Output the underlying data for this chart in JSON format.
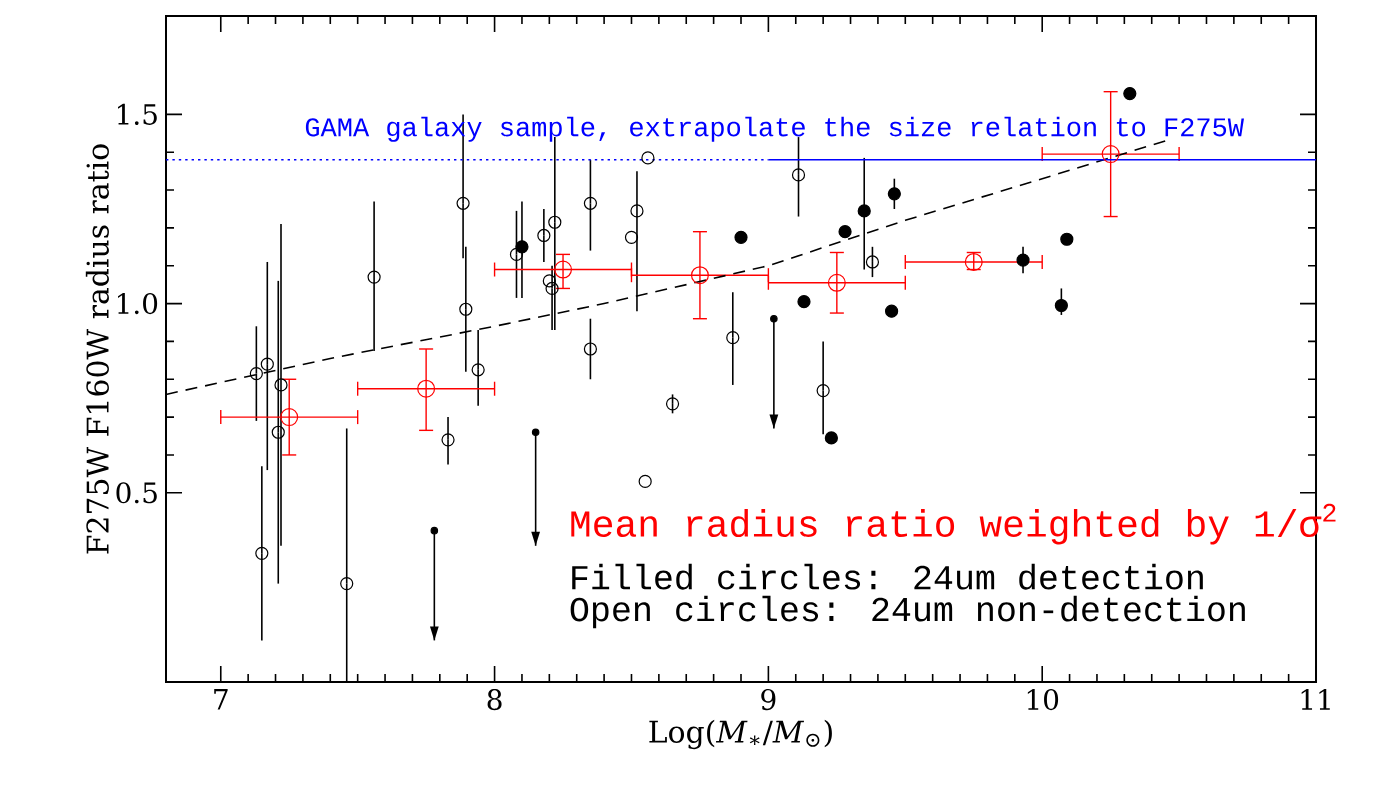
{
  "chart_data": {
    "type": "scatter",
    "xlabel": "Log(*M*$_{∗}$/*M*$_{⊙}$)",
    "ylabel": "F275W F160W radius ratio",
    "xlim": [
      6.8,
      11
    ],
    "ylim": [
      0,
      1.76
    ],
    "xticks": [
      7,
      8,
      9,
      10,
      11
    ],
    "yticks": [
      0.5,
      {
        "value": 1.0,
        "label": "1.0"
      },
      1.5
    ],
    "annotations": [
      "GAMA galaxy sample, extrapolate the size relation to F275W",
      "Mean radius ratio weighted by 1/σ$^{2}$",
      "Filled circles: 24um detection",
      "Open circles: 24um non-detection"
    ],
    "series": [
      {
        "color": "#000000",
        "marker": "circle-open",
        "x": [
          7.13,
          7.17,
          7.22,
          7.21,
          7.15,
          7.46,
          7.56,
          7.885,
          7.895,
          7.94,
          7.83,
          8.08,
          8.18,
          8.22,
          8.2,
          8.21,
          8.35,
          8.35,
          8.56,
          8.52,
          8.5,
          8.65,
          8.55,
          8.87,
          9.11,
          9.2,
          9.38
        ],
        "values": [
          0.815,
          0.84,
          0.785,
          0.66,
          0.34,
          0.26,
          1.07,
          1.265,
          0.985,
          0.825,
          0.64,
          1.13,
          1.18,
          1.215,
          1.06,
          1.04,
          1.265,
          0.88,
          1.385,
          1.245,
          1.175,
          0.735,
          0.53,
          0.91,
          1.34,
          0.77,
          1.11
        ],
        "errors": [
          [
            0.69,
            0.94
          ],
          [
            0.56,
            1.11
          ],
          [
            0.36,
            1.21
          ],
          [
            0.26,
            1.06
          ],
          [
            0.11,
            0.57
          ],
          [
            0,
            0.67
          ],
          [
            0.875,
            1.27
          ],
          [
            1.12,
            1.5
          ],
          [
            0.82,
            1.15
          ],
          [
            0.73,
            0.93
          ],
          [
            0.575,
            0.7
          ],
          [
            1.015,
            1.245
          ],
          [
            1.11,
            1.25
          ],
          [
            0.93,
            1.44
          ],
          null,
          [
            0.93,
            1.1
          ],
          [
            1.14,
            1.38
          ],
          [
            0.8,
            0.96
          ],
          null,
          [
            0.98,
            1.35
          ],
          null,
          [
            0.71,
            0.76
          ],
          null,
          [
            0.785,
            1.03
          ],
          [
            1.23,
            1.44
          ],
          [
            0.655,
            0.9
          ],
          [
            1.07,
            1.15
          ]
        ]
      },
      {
        "color": "#000000",
        "marker": "circle",
        "x": [
          8.1,
          8.9,
          9.13,
          9.28,
          9.35,
          9.46,
          9.45,
          9.23,
          9.93,
          10.09,
          10.07,
          10.32
        ],
        "values": [
          1.15,
          1.175,
          1.005,
          1.19,
          1.245,
          1.29,
          0.98,
          0.645,
          1.115,
          1.17,
          0.995,
          1.555
        ],
        "errors": [
          [
            1.015,
            1.27
          ],
          null,
          null,
          null,
          [
            1.09,
            1.385
          ],
          [
            1.25,
            1.33
          ],
          null,
          null,
          [
            1.08,
            1.15
          ],
          null,
          [
            0.97,
            1.04
          ],
          null
        ]
      },
      {
        "color": "#000000",
        "marker": "circle",
        "x": [
          7.78,
          8.15,
          9.02
        ],
        "values": [
          0.4,
          0.66,
          0.96
        ],
        "errors": [
          [
            0.11,
            0.4
          ],
          [
            0.36,
            0.66
          ],
          [
            0.67,
            0.96
          ]
        ]
      },
      {
        "color": "#ff0000",
        "marker": "circle-open",
        "x": [
          7.25,
          7.75,
          8.25,
          8.75,
          9.25,
          9.75,
          10.25
        ],
        "values": [
          0.7,
          0.775,
          1.09,
          1.075,
          1.055,
          1.11,
          1.395
        ],
        "errors": [
          [
            0.6,
            0.8
          ],
          [
            0.665,
            0.88
          ],
          [
            1.04,
            1.13
          ],
          [
            0.96,
            1.19
          ],
          [
            0.975,
            1.135
          ],
          [
            1.09,
            1.135
          ],
          [
            1.23,
            1.56
          ]
        ],
        "xerrors": [
          0.25,
          0.25,
          0.25,
          0.25,
          0.25,
          0.25,
          0.25
        ]
      },
      {
        "type": "line",
        "color": "#000000",
        "line_style": "dashed",
        "x": [
          6.8,
          7.4,
          8.0,
          8.4,
          9.0,
          9.5,
          10.0,
          10.45
        ],
        "values": [
          0.76,
          0.855,
          0.94,
          1.0,
          1.1,
          1.22,
          1.33,
          1.43
        ]
      },
      {
        "type": "line",
        "color": "#0000ff",
        "line_style": "dotted",
        "x": [
          6.8,
          9.0
        ],
        "values": [
          1.38,
          1.38
        ]
      },
      {
        "type": "line",
        "color": "#0000ff",
        "line_style": "solid",
        "x": [
          9.0,
          11.0
        ],
        "values": [
          1.38,
          1.38
        ]
      }
    ]
  }
}
